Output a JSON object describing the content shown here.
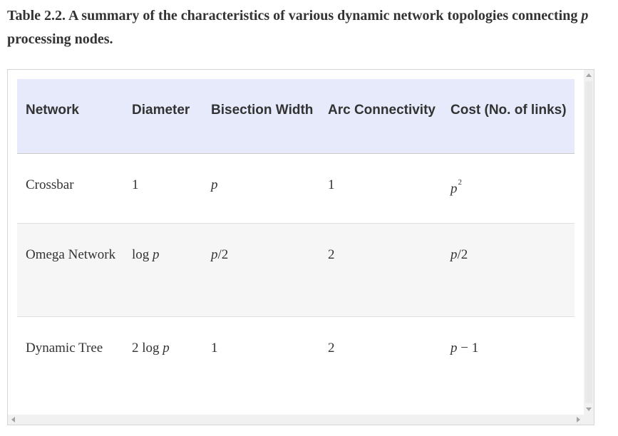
{
  "caption": {
    "prefix": "Table 2.2. A summary of the characteristics of various dynamic network topologies connecting",
    "variable": "p",
    "suffix": "processing nodes."
  },
  "table": {
    "headers": [
      "Network",
      "Diameter",
      "Bisection Width",
      "Arc Connectivity",
      "Cost (No. of links)"
    ],
    "rows": [
      {
        "network": "Crossbar",
        "diameter": "1",
        "bisection": "p",
        "arc": "1",
        "cost_base": "p",
        "cost_sup": "2"
      },
      {
        "network": "Omega Network",
        "diameter_prefix": "log",
        "diameter_var": "p",
        "bisection_var": "p",
        "bisection_suffix": "/2",
        "arc": "2",
        "cost_var": "p",
        "cost_suffix": "/2"
      },
      {
        "network": "Dynamic Tree",
        "diameter_prefix": "2 log",
        "diameter_var": "p",
        "bisection": "1",
        "arc": "2",
        "cost_var": "p",
        "cost_suffix": " − 1"
      }
    ]
  },
  "scrollbars": {
    "vertical_icons": [
      "arrow-up-icon",
      "arrow-down-icon"
    ],
    "horizontal_icons": [
      "arrow-left-icon",
      "arrow-right-icon"
    ]
  }
}
